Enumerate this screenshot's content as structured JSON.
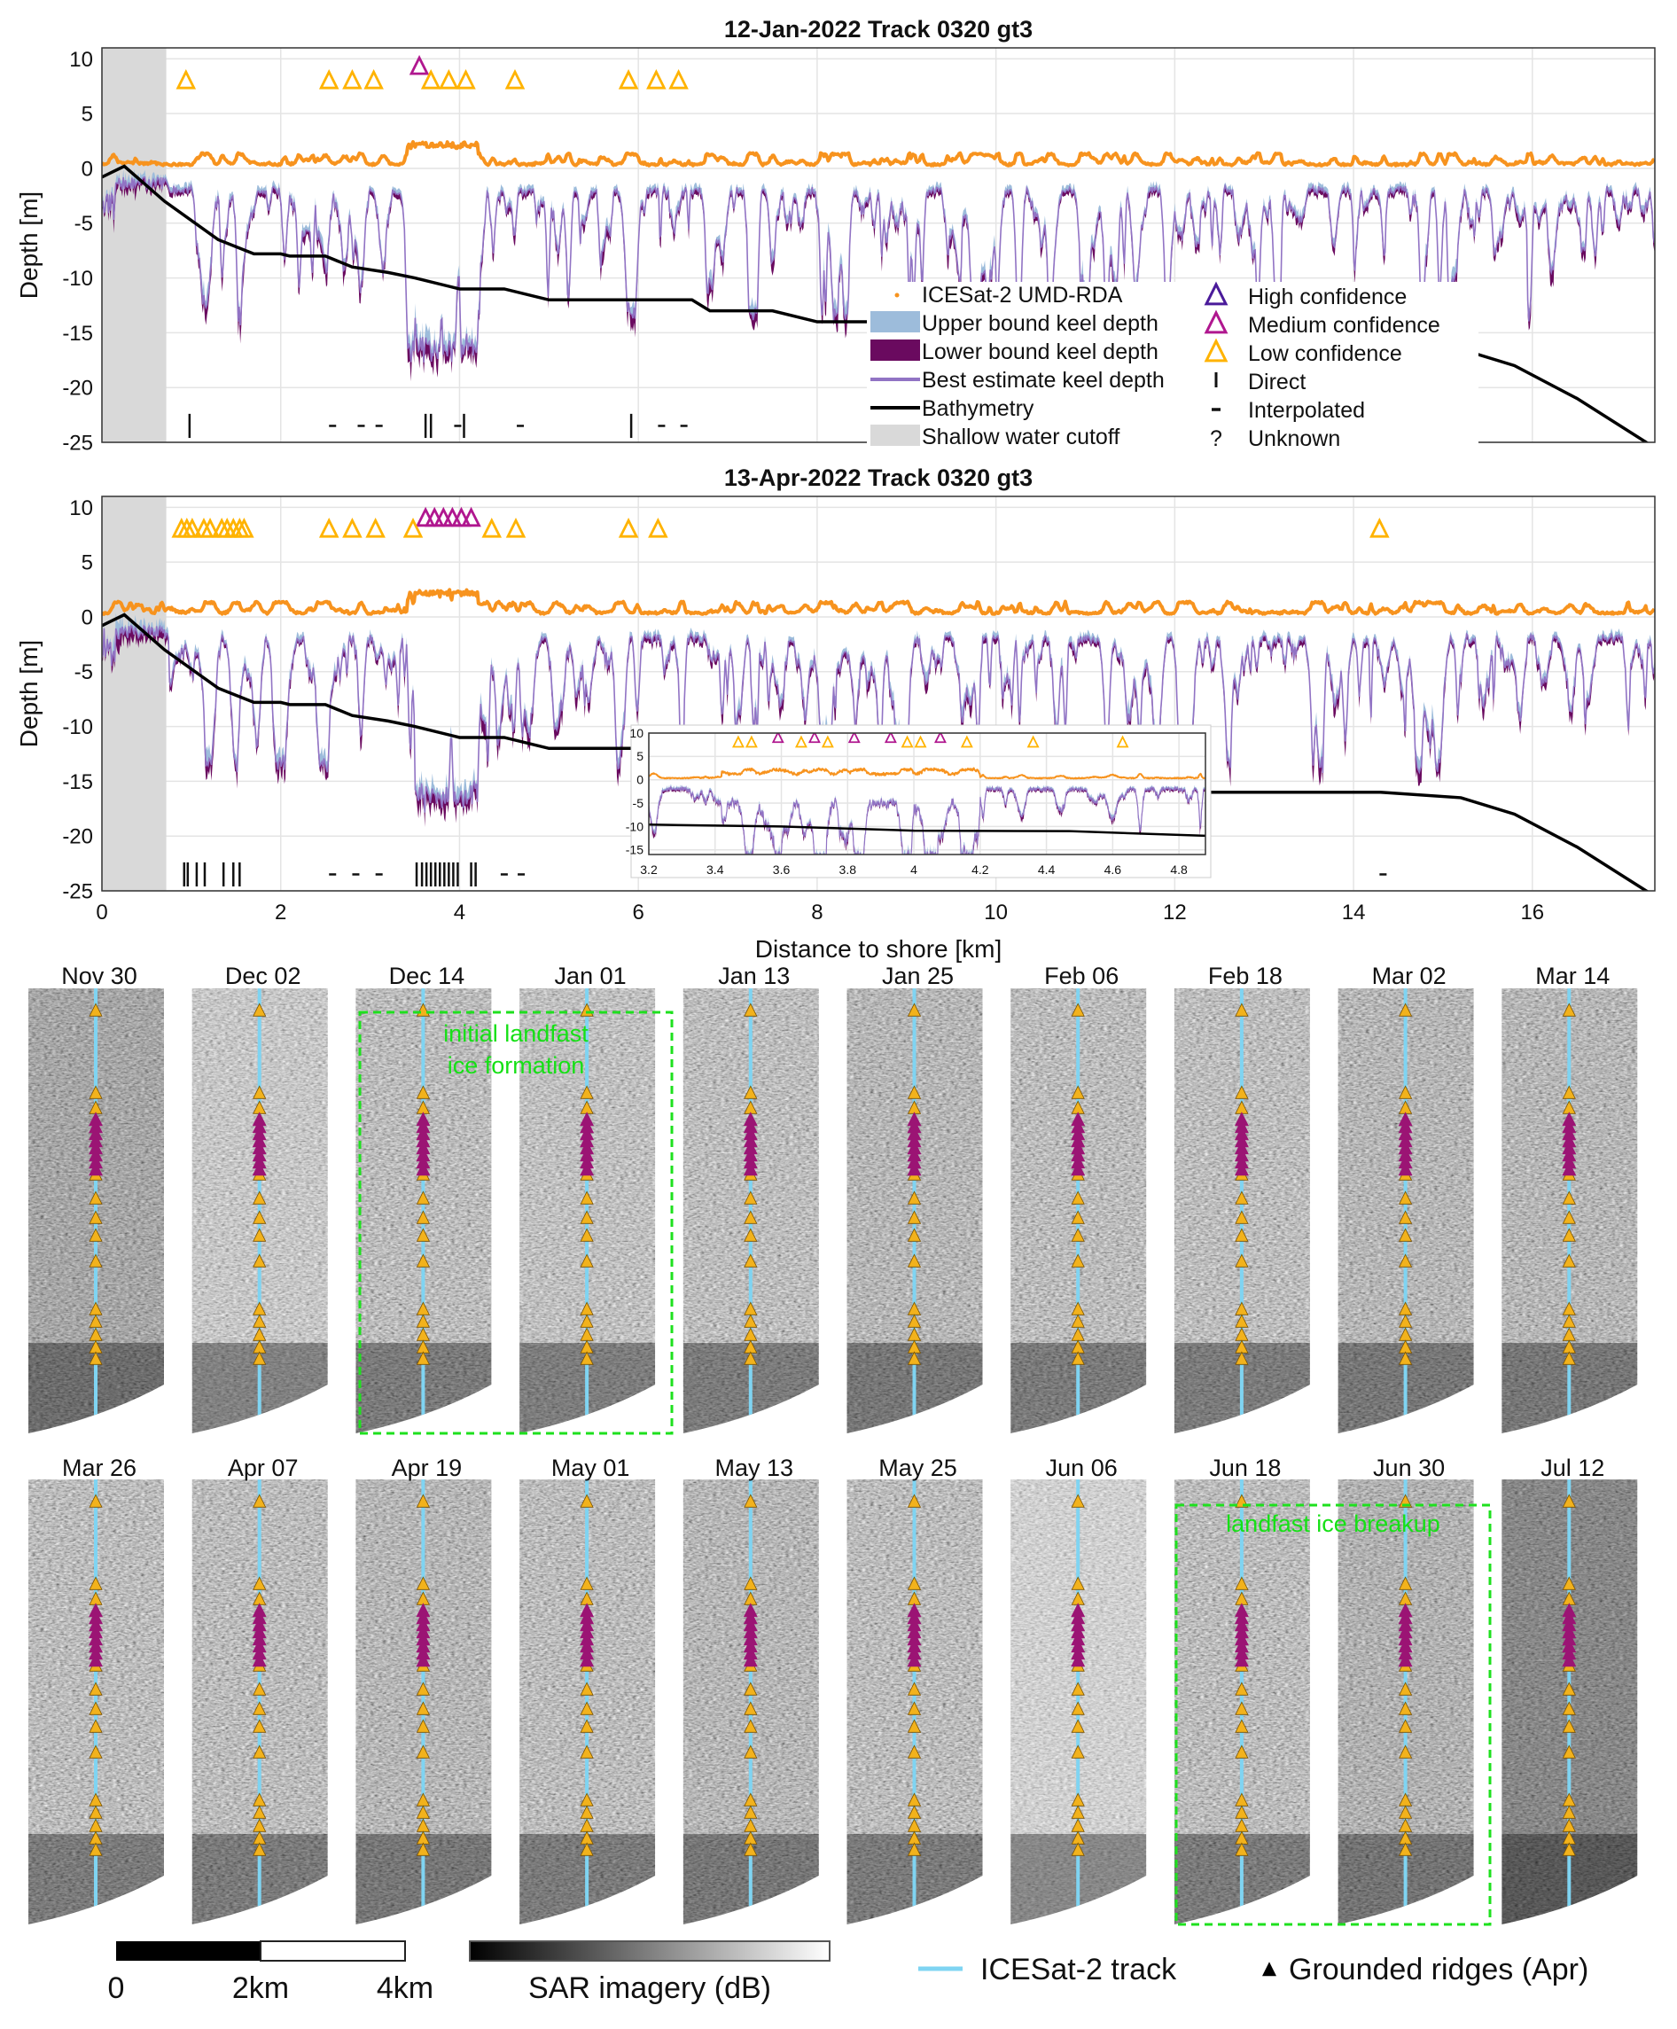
{
  "chart_data": [
    {
      "type": "line",
      "title": "12-Jan-2022 Track 0320 gt3",
      "xlabel": "",
      "ylabel": "Depth [m]",
      "xlim": [
        0,
        17.37
      ],
      "ylim": [
        -25,
        11
      ],
      "xticks": [
        0,
        2,
        4,
        6,
        8,
        10,
        12,
        14,
        16
      ],
      "yticks": [
        -25,
        -20,
        -15,
        -10,
        -5,
        0,
        5,
        10
      ],
      "grid": true,
      "shallow_cutoff_km": 0.72,
      "bathymetry": {
        "x": [
          0,
          0.25,
          0.7,
          1.3,
          1.7,
          2.0,
          2.1,
          2.5,
          2.8,
          3.2,
          3.5,
          4.0,
          4.5,
          5.0,
          6.0,
          6.6,
          6.8,
          7.5,
          8.0,
          9.0,
          10.0,
          11.5,
          14.3,
          15.2,
          15.8,
          16.5,
          17.37
        ],
        "y": [
          -0.8,
          0.2,
          -3,
          -6.5,
          -7.8,
          -7.8,
          -8,
          -8,
          -9,
          -9.5,
          -10,
          -11,
          -11,
          -12,
          -12,
          -12,
          -13,
          -13,
          -14,
          -14,
          -15,
          -16,
          -16,
          -16.5,
          -18,
          -21,
          -25.5
        ]
      },
      "ridges": {
        "low": [
          0.94,
          2.54,
          2.8,
          3.04,
          3.68,
          3.88,
          4.07,
          4.62,
          5.89,
          6.2,
          6.45
        ],
        "medium": [
          3.55
        ],
        "high": []
      },
      "ridge_y": {
        "low": 8,
        "medium": 9.3
      },
      "direct": [
        0.98,
        3.62,
        3.68,
        4.05,
        5.92
      ],
      "interpolated": [
        2.58,
        2.9,
        3.1,
        3.98,
        4.68,
        6.26,
        6.51
      ],
      "marker_y": -23.5,
      "seed": 11
    },
    {
      "type": "line",
      "title": "13-Apr-2022 Track 0320 gt3",
      "xlabel": "Distance to shore [km]",
      "ylabel": "Depth [m]",
      "xlim": [
        0,
        17.37
      ],
      "ylim": [
        -25,
        11
      ],
      "xticks": [
        0,
        2,
        4,
        6,
        8,
        10,
        12,
        14,
        16
      ],
      "yticks": [
        -25,
        -20,
        -15,
        -10,
        -5,
        0,
        5,
        10
      ],
      "grid": true,
      "shallow_cutoff_km": 0.72,
      "bathymetry": {
        "x": [
          0,
          0.25,
          0.7,
          1.3,
          1.7,
          2.0,
          2.1,
          2.5,
          2.8,
          3.2,
          3.5,
          4.0,
          4.5,
          5.0,
          6.0,
          6.6,
          6.8,
          7.5,
          8.0,
          9.0,
          10.0,
          11.5,
          14.3,
          15.2,
          15.8,
          16.5,
          17.37
        ],
        "y": [
          -0.8,
          0.2,
          -3,
          -6.5,
          -7.8,
          -7.8,
          -8,
          -8,
          -9,
          -9.5,
          -10,
          -11,
          -11,
          -12,
          -12,
          -12,
          -13,
          -13,
          -14,
          -14,
          -15,
          -16,
          -16,
          -16.5,
          -18,
          -21,
          -25.5
        ]
      },
      "ridges": {
        "low": [
          0.89,
          0.95,
          1.01,
          1.14,
          1.21,
          1.34,
          1.4,
          1.47,
          1.54,
          1.59,
          2.54,
          2.8,
          3.06,
          3.48,
          4.36,
          4.63,
          5.89,
          6.22,
          14.29
        ],
        "medium": [
          3.62,
          3.72,
          3.82,
          3.92,
          4.02,
          4.13
        ],
        "high": []
      },
      "ridge_y": {
        "low": 8,
        "medium": 9
      },
      "direct": [
        0.92,
        0.96,
        1.06,
        1.15,
        1.36,
        1.47,
        1.54,
        3.52,
        3.58,
        3.63,
        3.68,
        3.73,
        3.78,
        3.83,
        3.88,
        3.93,
        3.98,
        4.13,
        4.18
      ],
      "interpolated": [
        2.58,
        2.84,
        3.1,
        4.5,
        4.69,
        14.33
      ],
      "marker_y": -23.5,
      "seed": 23
    },
    {
      "type": "line",
      "title": "",
      "xlabel": "",
      "ylabel": "",
      "xlim": [
        3.2,
        4.88
      ],
      "ylim": [
        -16,
        10
      ],
      "xticks": [
        3.2,
        3.4,
        3.6,
        3.8,
        4,
        4.2,
        4.4,
        4.6,
        4.8
      ],
      "yticks": [
        -15,
        -10,
        -5,
        0,
        5,
        10
      ],
      "grid": true,
      "bathymetry": {
        "x": [
          3.2,
          3.6,
          4.0,
          4.47,
          4.88
        ],
        "y": [
          -9.6,
          -10,
          -10.9,
          -11,
          -12
        ]
      },
      "ridges": {
        "low": [
          3.47,
          3.51,
          3.66,
          3.74,
          3.98,
          4.02,
          4.16,
          4.36,
          4.63
        ],
        "medium": [
          3.59,
          3.7,
          3.82,
          3.93,
          4.08
        ],
        "high": []
      },
      "ridge_y": {
        "low": 8,
        "medium": 9
      },
      "direct": [],
      "interpolated": [],
      "seed": 37
    }
  ],
  "legend": {
    "series": [
      {
        "label": "ICESat-2 UMD-RDA",
        "color": "#f7931e"
      },
      {
        "label": "Upper bound keel depth",
        "color": "#9dbcdb"
      },
      {
        "label": "Lower bound keel depth",
        "color": "#6a0a5f"
      },
      {
        "label": "Best estimate keel depth",
        "color": "#9173c4"
      },
      {
        "label": "Bathymetry",
        "color": "#000000"
      },
      {
        "label": "Shallow water cutoff",
        "color": "#d9d9d9"
      }
    ],
    "markers": [
      {
        "label": "High confidence",
        "color": "#4a1a9a"
      },
      {
        "label": "Medium confidence",
        "color": "#b0178f"
      },
      {
        "label": "Low confidence",
        "color": "#ffb300"
      },
      {
        "label": "Direct",
        "symbol": "I"
      },
      {
        "label": "Interpolated",
        "symbol": "-"
      },
      {
        "label": "Unknown",
        "symbol": "?"
      }
    ]
  },
  "sar": {
    "rows": [
      [
        {
          "date": "Nov 30",
          "brightness": 0.42
        },
        {
          "date": "Dec 02",
          "brightness": 0.62
        },
        {
          "date": "Dec 14",
          "brightness": 0.5
        },
        {
          "date": "Jan 01",
          "brightness": 0.55
        },
        {
          "date": "Jan 13",
          "brightness": 0.52
        },
        {
          "date": "Jan 25",
          "brightness": 0.48
        },
        {
          "date": "Feb 06",
          "brightness": 0.5
        },
        {
          "date": "Feb 18",
          "brightness": 0.52
        },
        {
          "date": "Mar 02",
          "brightness": 0.48
        },
        {
          "date": "Mar 14",
          "brightness": 0.48
        }
      ],
      [
        {
          "date": "Mar 26",
          "brightness": 0.5
        },
        {
          "date": "Apr 07",
          "brightness": 0.5
        },
        {
          "date": "Apr 19",
          "brightness": 0.48
        },
        {
          "date": "May 01",
          "brightness": 0.5
        },
        {
          "date": "May 13",
          "brightness": 0.48
        },
        {
          "date": "May 25",
          "brightness": 0.5
        },
        {
          "date": "Jun 06",
          "brightness": 0.72
        },
        {
          "date": "Jun 18",
          "brightness": 0.5
        },
        {
          "date": "Jun 30",
          "brightness": 0.46
        },
        {
          "date": "Jul 12",
          "brightness": 0.3
        }
      ]
    ],
    "annotations": {
      "formation_line1": "initial landfast",
      "formation_line2": "ice formation",
      "breakup": "landfast ice breakup"
    },
    "colors": {
      "track": "#7fd4f2",
      "low": "#f2b21c",
      "medium": "#9b1474",
      "box": "#1ee01e"
    }
  },
  "bottom_legend": {
    "scale_labels": [
      "0",
      "2km",
      "4km"
    ],
    "colorbar_label": "SAR imagery (dB)",
    "track_label": "ICESat-2 track",
    "ridges_label": "Grounded ridges (Apr)"
  }
}
